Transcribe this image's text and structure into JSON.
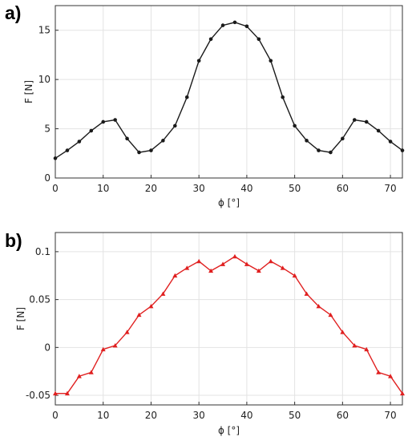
{
  "chart_data": [
    {
      "panel_label": "a)",
      "type": "line",
      "xlabel": "ϕ [°]",
      "ylabel": "F [N]",
      "xlim": [
        0,
        72.5
      ],
      "ylim": [
        0,
        17.5
      ],
      "xticks": [
        "0",
        "10",
        "20",
        "30",
        "40",
        "50",
        "60",
        "70"
      ],
      "yticks": [
        "0",
        "5",
        "10",
        "15"
      ],
      "grid": true,
      "series": [
        {
          "color": "#1a1a1a",
          "marker": "circle",
          "x": [
            0,
            2.5,
            5,
            7.5,
            10,
            12.5,
            15,
            17.5,
            20,
            22.5,
            25,
            27.5,
            30,
            32.5,
            35,
            37.5,
            40,
            42.5,
            45,
            47.5,
            50,
            52.5,
            55,
            57.5,
            60,
            62.5,
            65,
            67.5,
            70,
            72.5
          ],
          "y": [
            2.0,
            2.8,
            3.7,
            4.8,
            5.7,
            5.9,
            4.0,
            2.6,
            2.8,
            3.8,
            5.3,
            8.2,
            11.9,
            14.1,
            15.5,
            15.8,
            15.4,
            14.1,
            11.9,
            8.2,
            5.3,
            3.8,
            2.8,
            2.6,
            4.0,
            5.9,
            5.7,
            4.8,
            3.7,
            2.8
          ]
        }
      ]
    },
    {
      "panel_label": "b)",
      "type": "line",
      "xlabel": "ϕ [°]",
      "ylabel": "F [N]",
      "xlim": [
        0,
        72.5
      ],
      "ylim": [
        -0.06,
        0.12
      ],
      "xticks": [
        "0",
        "10",
        "20",
        "30",
        "40",
        "50",
        "60",
        "70"
      ],
      "yticks": [
        "-0.05",
        "0",
        "0.05",
        "0.1"
      ],
      "grid": true,
      "series": [
        {
          "color": "#e02020",
          "marker": "triangle",
          "x": [
            0,
            2.5,
            5,
            7.5,
            10,
            12.5,
            15,
            17.5,
            20,
            22.5,
            25,
            27.5,
            30,
            32.5,
            35,
            37.5,
            40,
            42.5,
            45,
            47.5,
            50,
            52.5,
            55,
            57.5,
            60,
            62.5,
            65,
            67.5,
            70,
            72.5
          ],
          "y": [
            -0.048,
            -0.048,
            -0.03,
            -0.026,
            -0.002,
            0.002,
            0.016,
            0.034,
            0.043,
            0.056,
            0.075,
            0.083,
            0.09,
            0.08,
            0.087,
            0.095,
            0.087,
            0.08,
            0.09,
            0.083,
            0.075,
            0.056,
            0.043,
            0.034,
            0.016,
            0.002,
            -0.002,
            -0.026,
            -0.03,
            -0.048
          ]
        }
      ]
    }
  ]
}
